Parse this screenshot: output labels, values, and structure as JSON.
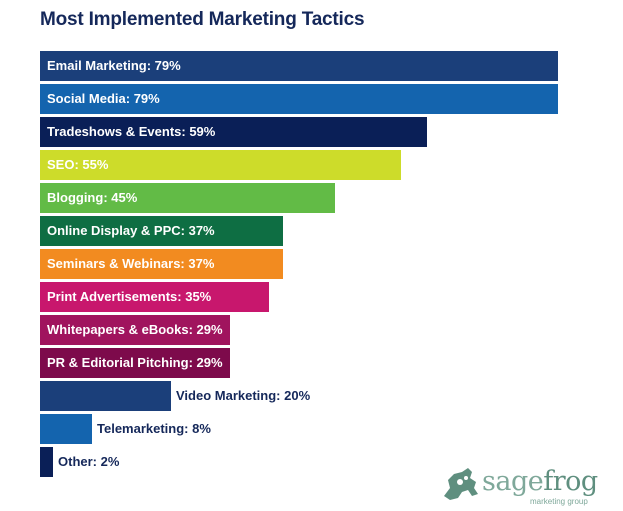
{
  "title": "Most Implemented Marketing Tactics",
  "chart_data": {
    "type": "bar",
    "orientation": "horizontal",
    "title": "Most Implemented Marketing Tactics",
    "xlabel": "",
    "ylabel": "",
    "unit": "%",
    "categories": [
      "Email Marketing",
      "Social Media",
      "Tradeshows & Events",
      "SEO",
      "Blogging",
      "Online Display & PPC",
      "Seminars & Webinars",
      "Print Advertisements",
      "Whitepapers & eBooks",
      "PR & Editorial Pitching",
      "Video Marketing",
      "Telemarketing",
      "Other"
    ],
    "values": [
      79,
      79,
      59,
      55,
      45,
      37,
      37,
      35,
      29,
      29,
      20,
      8,
      2
    ],
    "colors": [
      "#1b3f7a",
      "#1464ae",
      "#0a1f57",
      "#cddc2a",
      "#62bb46",
      "#0e6e43",
      "#f28b20",
      "#c8176d",
      "#a0145e",
      "#7d0a4b",
      "#1b3f7a",
      "#1464ae",
      "#0a1f57"
    ],
    "labels": [
      "Email Marketing: 79%",
      "Social Media: 79%",
      "Tradeshows & Events: 59%",
      "SEO: 55%",
      "Blogging: 45%",
      "Online Display & PPC: 37%",
      "Seminars & Webinars: 37%",
      "Print Advertisements: 35%",
      "Whitepapers & eBooks: 29%",
      "PR & Editorial Pitching: 29%",
      "Video Marketing: 20%",
      "Telemarketing: 8%",
      "Other: 2%"
    ],
    "xlim": [
      0,
      79
    ],
    "grid": false,
    "legend": "none"
  },
  "logo": {
    "brand_light": "sage",
    "brand_dark": "frog",
    "tagline": "marketing group"
  }
}
